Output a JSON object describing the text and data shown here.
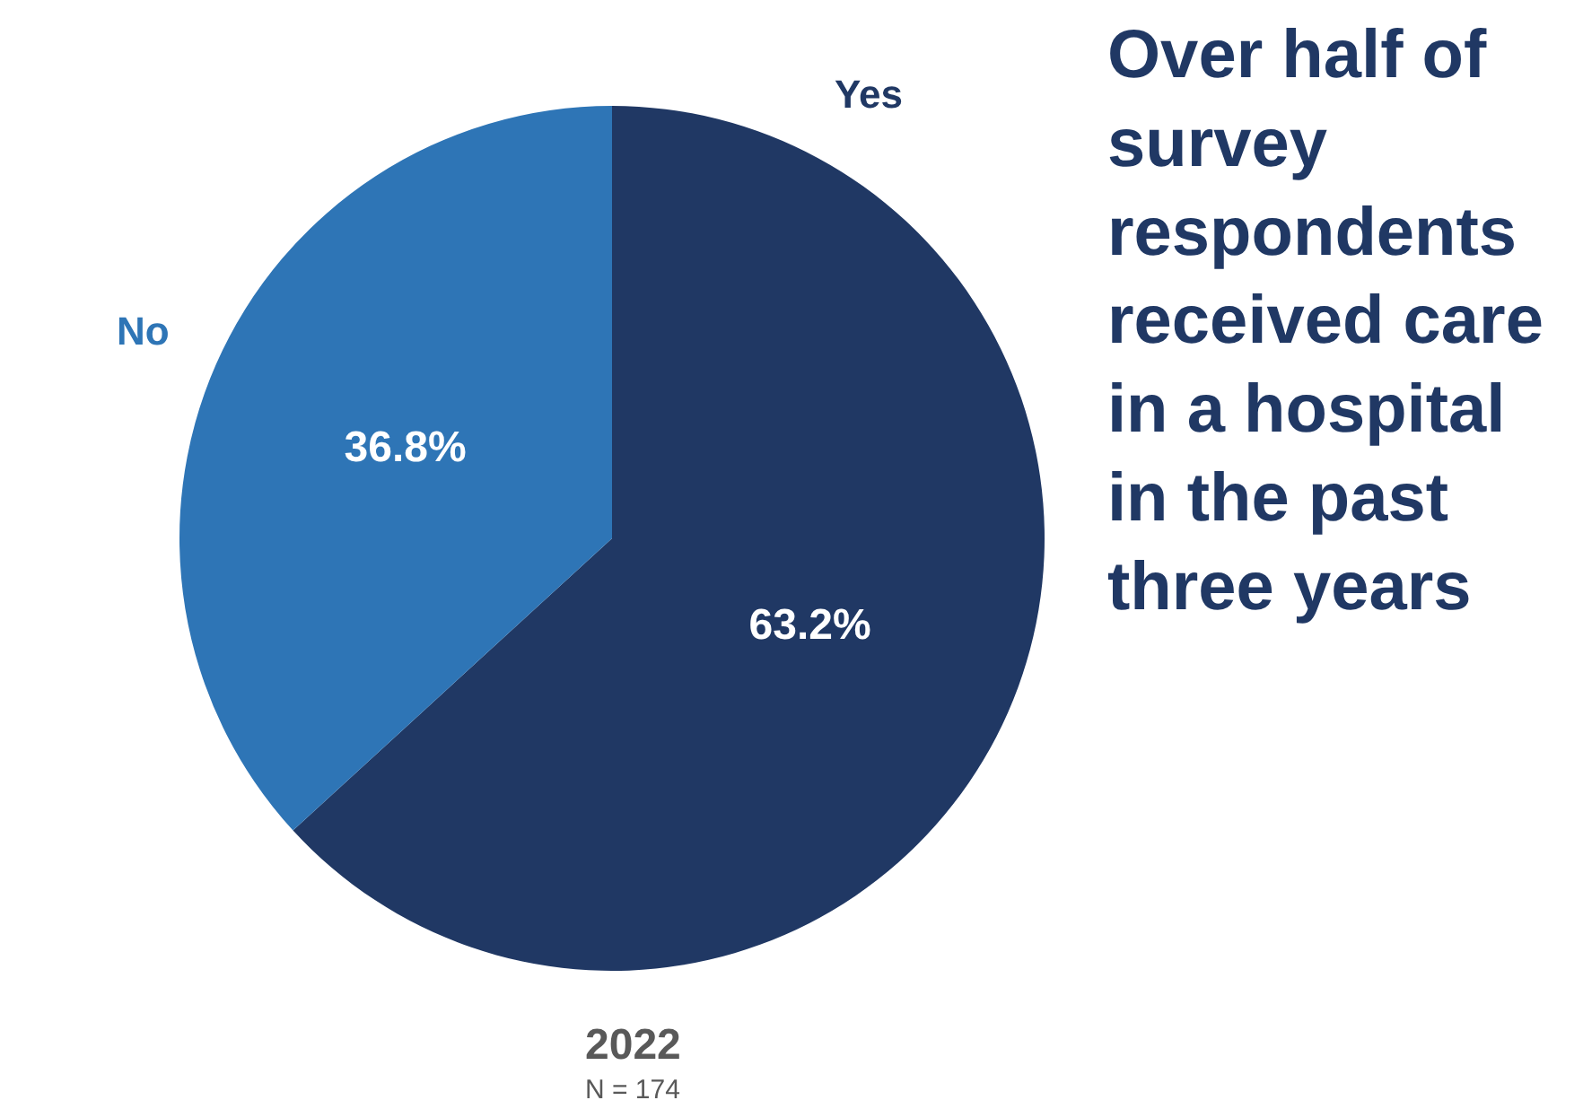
{
  "chart_data": {
    "type": "pie",
    "title": "Over half of survey respondents received care in a hospital in the past three years",
    "categories": [
      "Yes",
      "No"
    ],
    "values": [
      63.2,
      36.8
    ],
    "colors": [
      "#203864",
      "#2e75b6"
    ],
    "value_labels": [
      "63.2%",
      "36.8%"
    ],
    "legend": false,
    "annotations": [
      "2022",
      "N = 174"
    ]
  }
}
